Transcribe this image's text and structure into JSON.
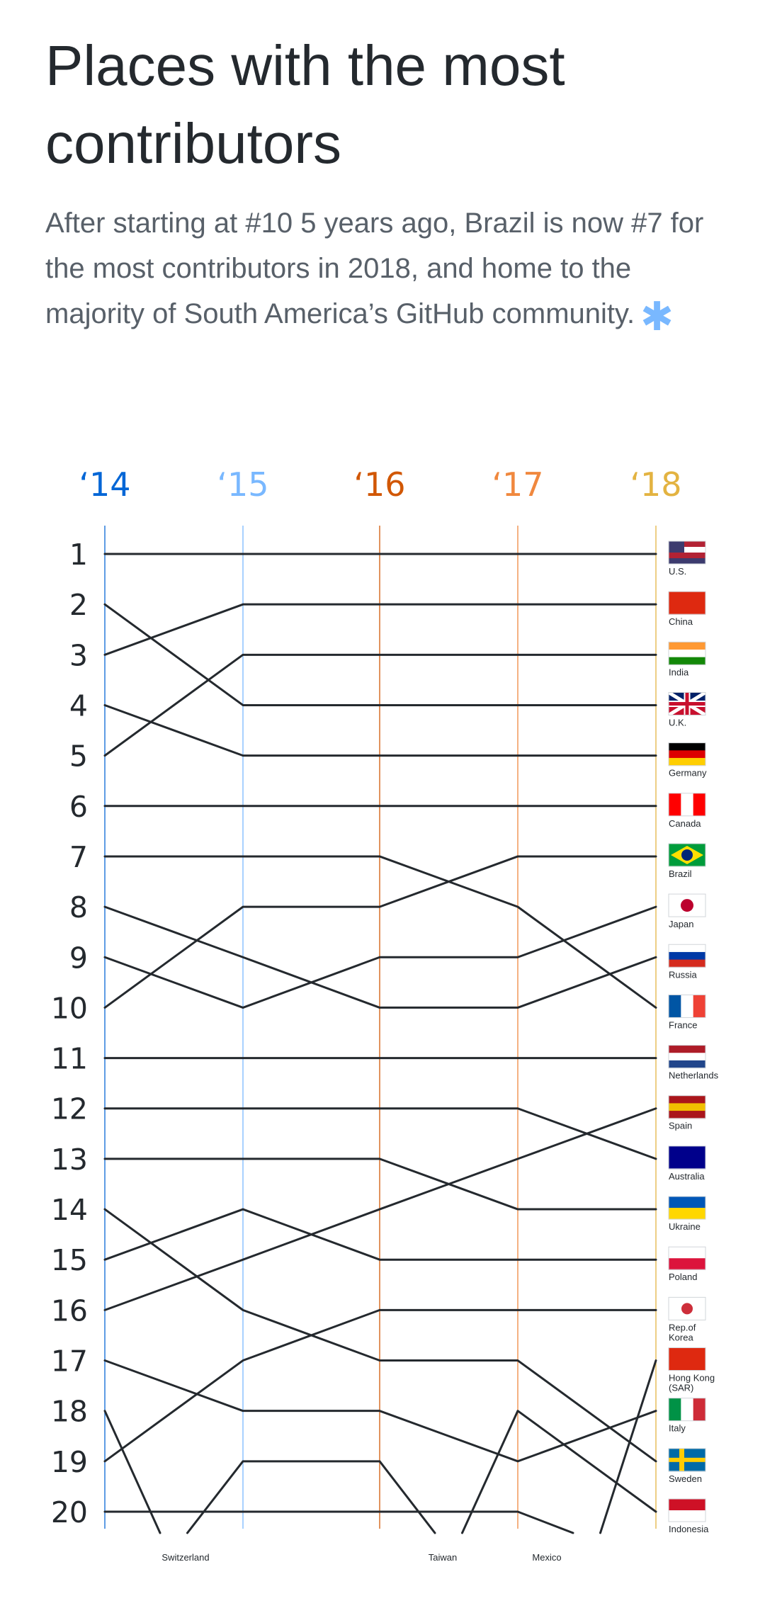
{
  "header": {
    "title": "Places with the most contributors",
    "subtitle": "After starting at #10 5 years ago, Brazil is now #7 for the most contributors in 2018, and home to the majority of South America’s GitHub community.",
    "asterisk": "✱"
  },
  "chart_data": {
    "type": "bump",
    "title": "Places with the most contributors",
    "years": [
      "‘14",
      "‘15",
      "‘16",
      "‘17",
      "‘18"
    ],
    "year_colors": [
      "#0366d6",
      "#79b8ff",
      "#d15704",
      "#f0883e",
      "#e3b341"
    ],
    "ranks": [
      1,
      2,
      3,
      4,
      5,
      6,
      7,
      8,
      9,
      10,
      11,
      12,
      13,
      14,
      15,
      16,
      17,
      18,
      19,
      20
    ],
    "series": [
      {
        "name": "U.S.",
        "ranks": [
          1,
          1,
          1,
          1,
          1
        ]
      },
      {
        "name": "China",
        "ranks": [
          3,
          2,
          2,
          2,
          2
        ]
      },
      {
        "name": "India",
        "ranks": [
          5,
          3,
          3,
          3,
          3
        ]
      },
      {
        "name": "U.K.",
        "ranks": [
          2,
          4,
          4,
          4,
          4
        ]
      },
      {
        "name": "Germany",
        "ranks": [
          4,
          5,
          5,
          5,
          5
        ]
      },
      {
        "name": "Canada",
        "ranks": [
          6,
          6,
          6,
          6,
          6
        ]
      },
      {
        "name": "Brazil",
        "ranks": [
          10,
          8,
          8,
          7,
          7
        ]
      },
      {
        "name": "Japan",
        "ranks": [
          9,
          10,
          9,
          9,
          8
        ]
      },
      {
        "name": "Russia",
        "ranks": [
          8,
          9,
          10,
          10,
          9
        ]
      },
      {
        "name": "France",
        "ranks": [
          7,
          7,
          7,
          8,
          10
        ]
      },
      {
        "name": "Netherlands",
        "ranks": [
          11,
          11,
          11,
          11,
          11
        ]
      },
      {
        "name": "Spain",
        "ranks": [
          16,
          15,
          14,
          13,
          12
        ]
      },
      {
        "name": "Australia",
        "ranks": [
          12,
          12,
          12,
          12,
          13
        ]
      },
      {
        "name": "Ukraine",
        "ranks": [
          13,
          13,
          13,
          14,
          14
        ]
      },
      {
        "name": "Poland",
        "ranks": [
          15,
          14,
          15,
          15,
          15
        ]
      },
      {
        "name": "Rep.of Korea",
        "ranks": [
          19,
          17,
          16,
          16,
          16
        ]
      },
      {
        "name": "Hong Kong (SAR)",
        "ranks": [
          null,
          null,
          null,
          null,
          17
        ]
      },
      {
        "name": "Italy",
        "ranks": [
          17,
          18,
          18,
          19,
          18
        ]
      },
      {
        "name": "Sweden",
        "ranks": [
          14,
          16,
          17,
          17,
          19
        ]
      },
      {
        "name": "Indonesia",
        "ranks": [
          null,
          null,
          null,
          18,
          20
        ]
      },
      {
        "name": "Switzerland",
        "ranks": [
          18,
          null,
          null,
          null,
          null
        ]
      },
      {
        "name": "Taiwan",
        "ranks": [
          null,
          19,
          19,
          null,
          null
        ]
      },
      {
        "name": "Mexico",
        "ranks": [
          20,
          20,
          20,
          20,
          null
        ]
      }
    ],
    "dropped_off": [
      "Switzerland",
      "Taiwan",
      "Mexico"
    ]
  }
}
